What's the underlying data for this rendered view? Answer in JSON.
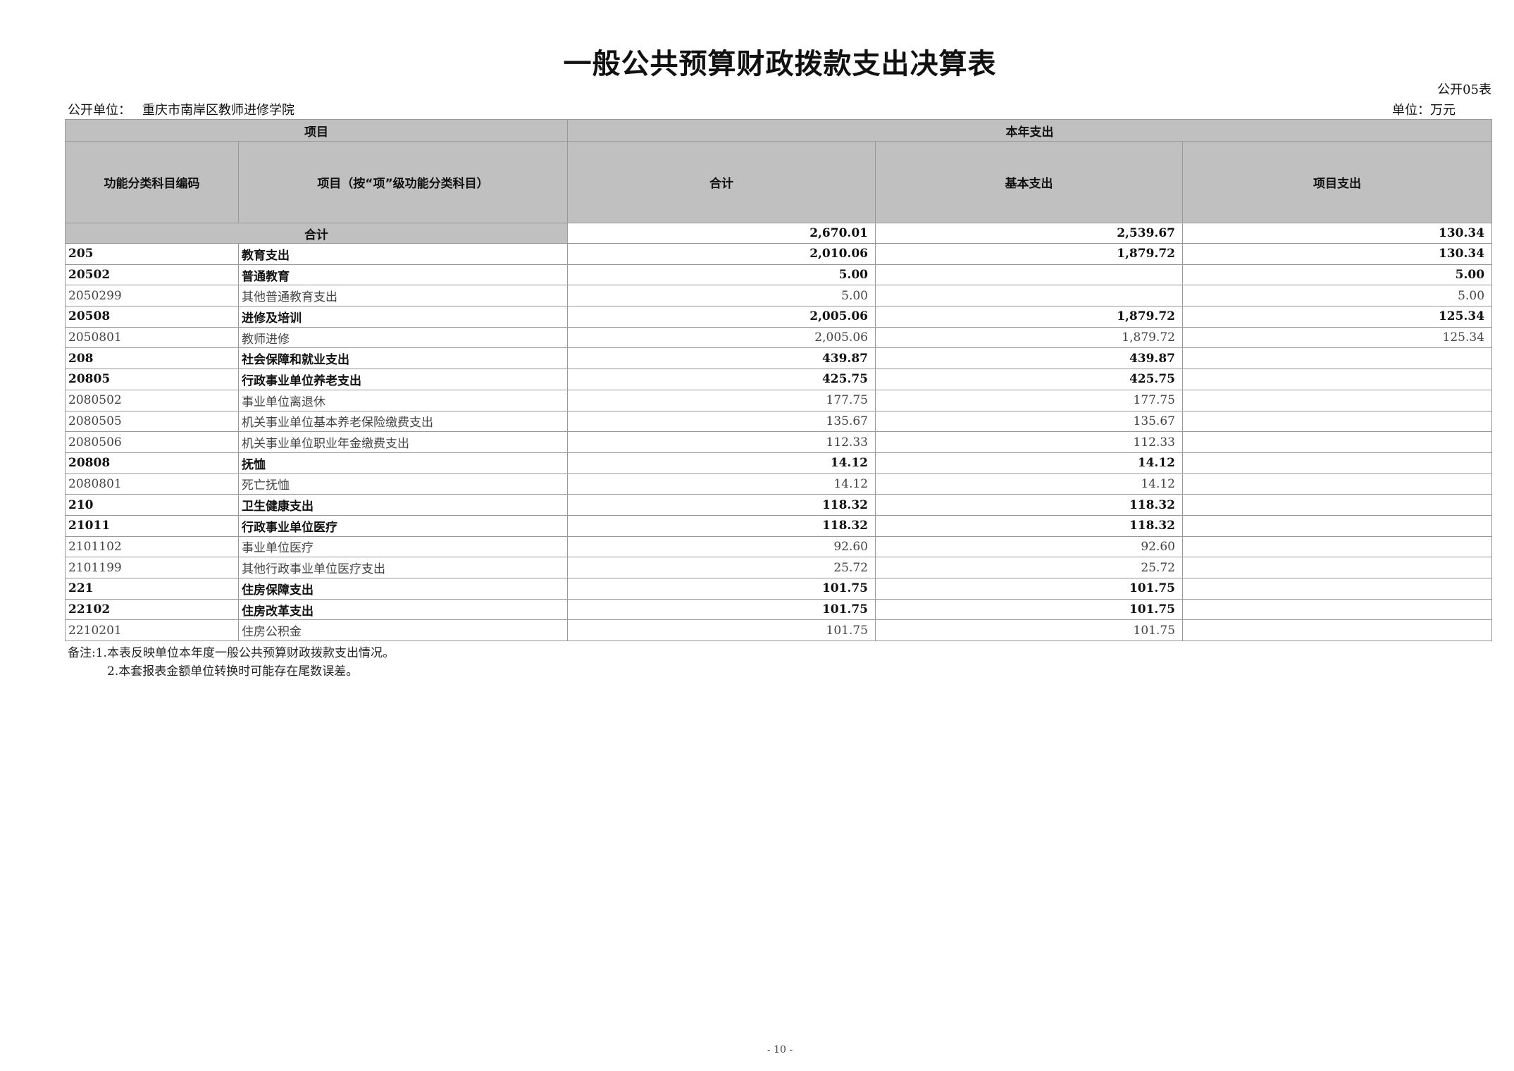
{
  "title": "一般公共预算财政拨款支出决算表",
  "form_no": "公开05表",
  "unit_label": "公开单位：",
  "unit_name": "重庆市南岸区教师进修学院",
  "currency_unit": "单位：万元",
  "header": {
    "item": "项目",
    "current_year": "本年支出",
    "code": "功能分类科目编码",
    "name": "项目（按“项”级功能分类科目）",
    "total": "合计",
    "basic": "基本支出",
    "project": "项目支出"
  },
  "total_row": {
    "label": "合计",
    "total": "2,670.01",
    "basic": "2,539.67",
    "project": "130.34"
  },
  "rows": [
    {
      "code": "205",
      "name": "教育支出",
      "total": "2,010.06",
      "basic": "1,879.72",
      "project": "130.34",
      "bold": true
    },
    {
      "code": "20502",
      "name": "普通教育",
      "total": "5.00",
      "basic": "",
      "project": "5.00",
      "bold": true
    },
    {
      "code": "2050299",
      "name": "其他普通教育支出",
      "total": "5.00",
      "basic": "",
      "project": "5.00",
      "bold": false
    },
    {
      "code": "20508",
      "name": "进修及培训",
      "total": "2,005.06",
      "basic": "1,879.72",
      "project": "125.34",
      "bold": true
    },
    {
      "code": "2050801",
      "name": "教师进修",
      "total": "2,005.06",
      "basic": "1,879.72",
      "project": "125.34",
      "bold": false
    },
    {
      "code": "208",
      "name": "社会保障和就业支出",
      "total": "439.87",
      "basic": "439.87",
      "project": "",
      "bold": true
    },
    {
      "code": "20805",
      "name": "行政事业单位养老支出",
      "total": "425.75",
      "basic": "425.75",
      "project": "",
      "bold": true
    },
    {
      "code": "2080502",
      "name": "事业单位离退休",
      "total": "177.75",
      "basic": "177.75",
      "project": "",
      "bold": false
    },
    {
      "code": "2080505",
      "name": "机关事业单位基本养老保险缴费支出",
      "total": "135.67",
      "basic": "135.67",
      "project": "",
      "bold": false
    },
    {
      "code": "2080506",
      "name": "机关事业单位职业年金缴费支出",
      "total": "112.33",
      "basic": "112.33",
      "project": "",
      "bold": false
    },
    {
      "code": "20808",
      "name": "抚恤",
      "total": "14.12",
      "basic": "14.12",
      "project": "",
      "bold": true
    },
    {
      "code": "2080801",
      "name": "死亡抚恤",
      "total": "14.12",
      "basic": "14.12",
      "project": "",
      "bold": false
    },
    {
      "code": "210",
      "name": "卫生健康支出",
      "total": "118.32",
      "basic": "118.32",
      "project": "",
      "bold": true
    },
    {
      "code": "21011",
      "name": "行政事业单位医疗",
      "total": "118.32",
      "basic": "118.32",
      "project": "",
      "bold": true
    },
    {
      "code": "2101102",
      "name": "事业单位医疗",
      "total": "92.60",
      "basic": "92.60",
      "project": "",
      "bold": false
    },
    {
      "code": "2101199",
      "name": "其他行政事业单位医疗支出",
      "total": "25.72",
      "basic": "25.72",
      "project": "",
      "bold": false
    },
    {
      "code": "221",
      "name": "住房保障支出",
      "total": "101.75",
      "basic": "101.75",
      "project": "",
      "bold": true
    },
    {
      "code": "22102",
      "name": "住房改革支出",
      "total": "101.75",
      "basic": "101.75",
      "project": "",
      "bold": true
    },
    {
      "code": "2210201",
      "name": "住房公积金",
      "total": "101.75",
      "basic": "101.75",
      "project": "",
      "bold": false
    }
  ],
  "notes": [
    "备注:1.本表反映单位本年度一般公共预算财政拨款支出情况。",
    "2.本套报表金额单位转换时可能存在尾数误差。"
  ],
  "page_number": "- 10 -"
}
